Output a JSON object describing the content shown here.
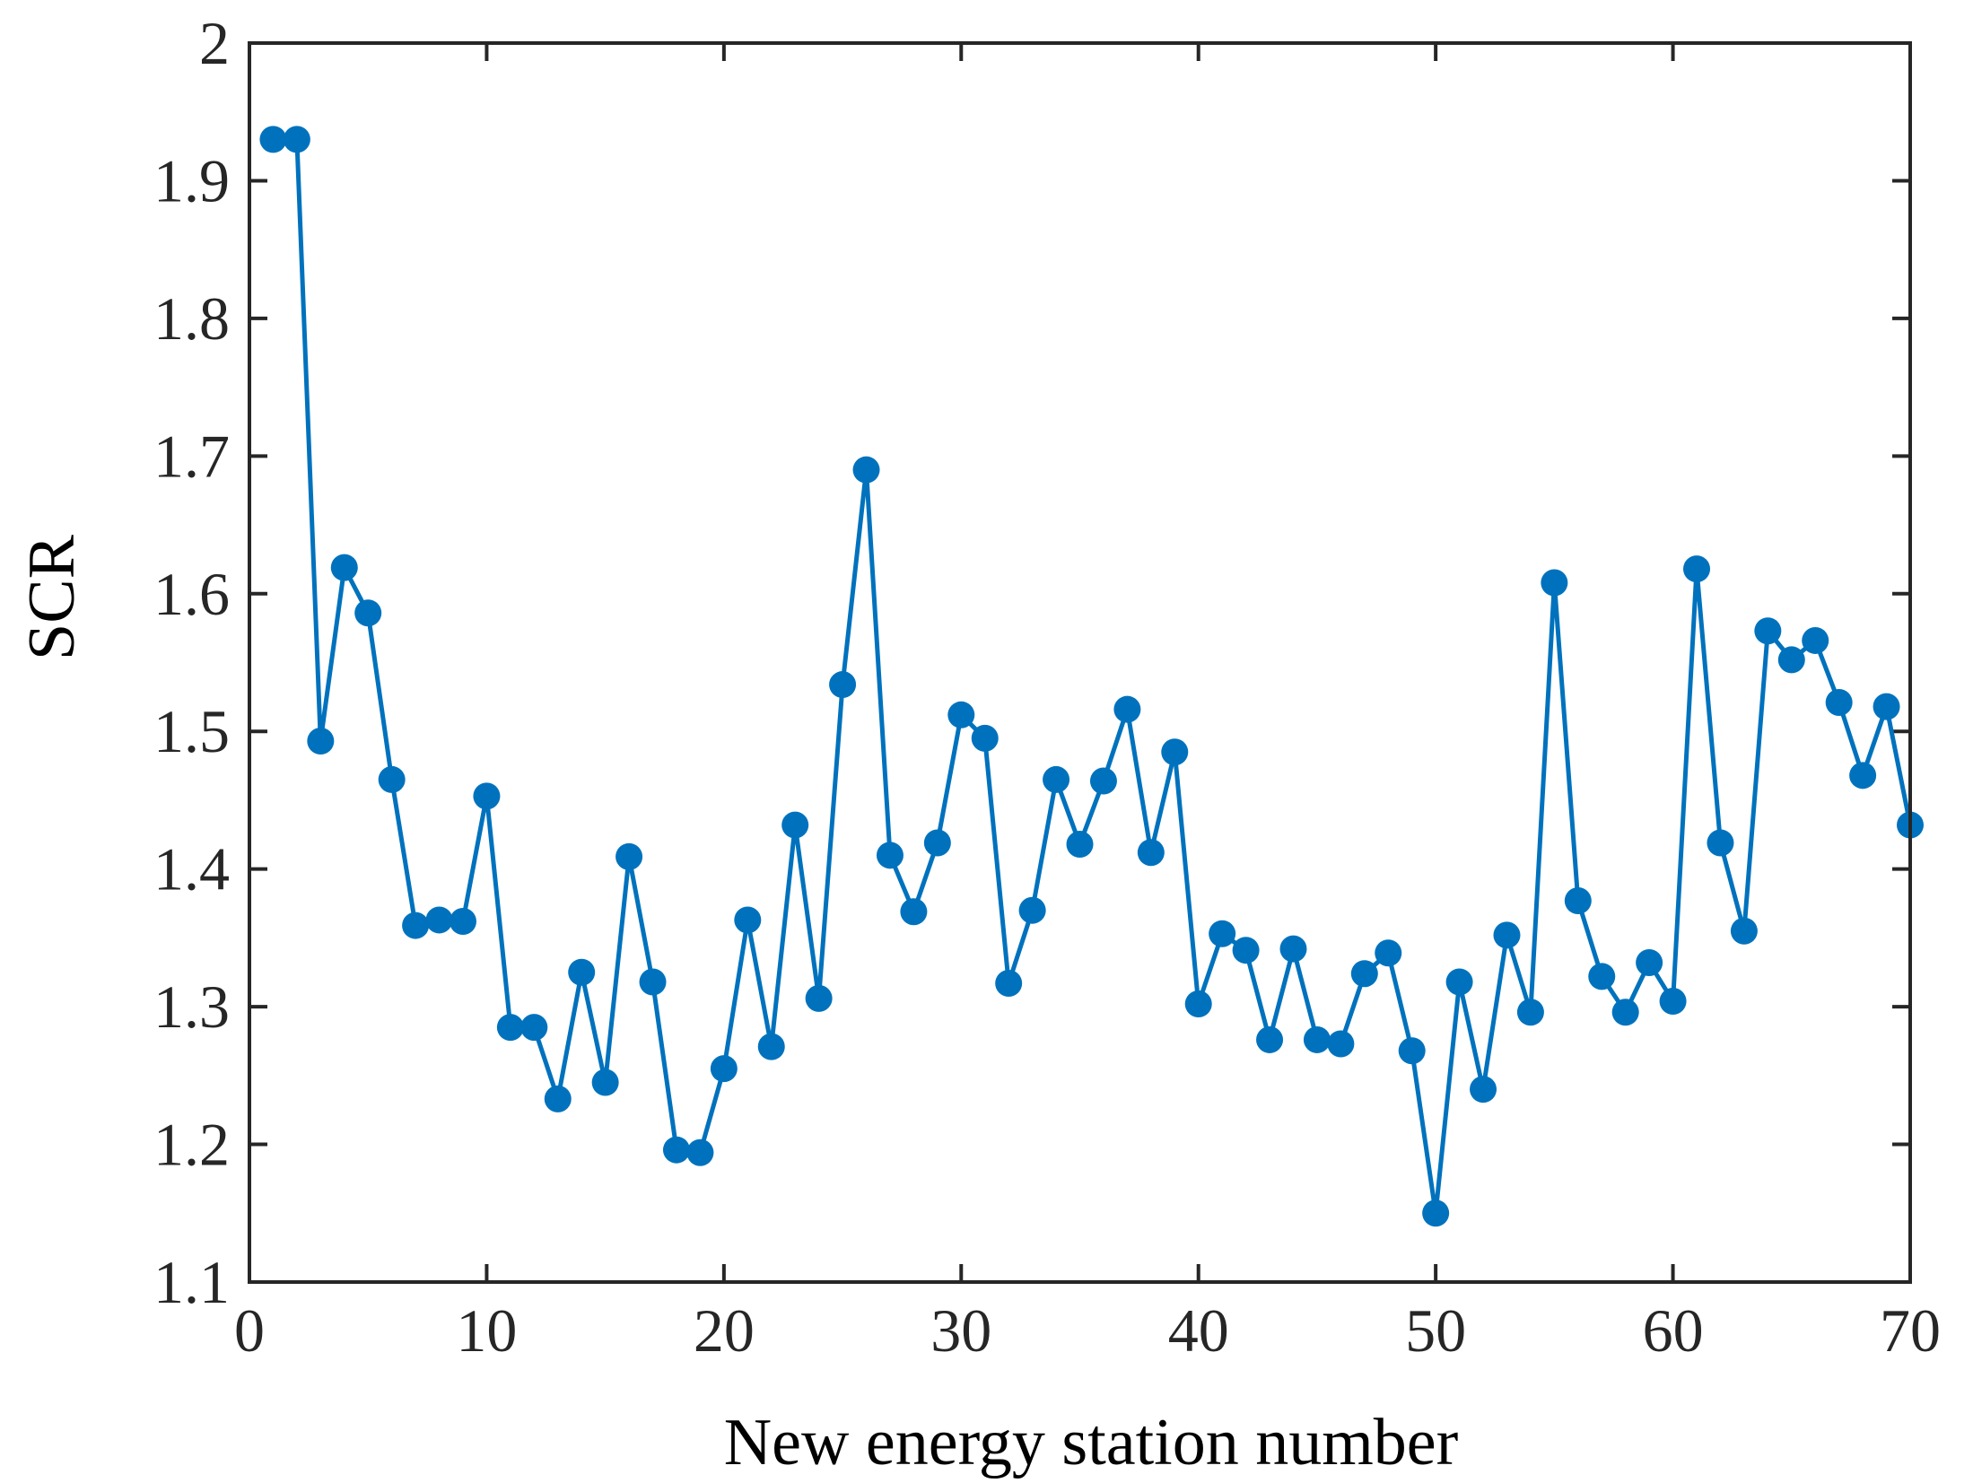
{
  "chart_data": {
    "type": "line",
    "title": "",
    "xlabel": "New energy station number",
    "ylabel": "SCR",
    "xlim": [
      0,
      70
    ],
    "ylim": [
      1.1,
      2.0
    ],
    "xticks": [
      0,
      10,
      20,
      30,
      40,
      50,
      60,
      70
    ],
    "xtick_labels": [
      "0",
      "10",
      "20",
      "30",
      "40",
      "50",
      "60",
      "70"
    ],
    "yticks": [
      1.1,
      1.2,
      1.3,
      1.4,
      1.5,
      1.6,
      1.7,
      1.8,
      1.9,
      2.0
    ],
    "ytick_labels": [
      "1.1",
      "1.2",
      "1.3",
      "1.4",
      "1.5",
      "1.6",
      "1.7",
      "1.8",
      "1.9",
      "2"
    ],
    "grid": false,
    "legend": "none",
    "series": [
      {
        "name": "SCR",
        "color": "#0072BD",
        "marker": "circle",
        "x": [
          1,
          2,
          3,
          4,
          5,
          6,
          7,
          8,
          9,
          10,
          11,
          12,
          13,
          14,
          15,
          16,
          17,
          18,
          19,
          20,
          21,
          22,
          23,
          24,
          25,
          26,
          27,
          28,
          29,
          30,
          31,
          32,
          33,
          34,
          35,
          36,
          37,
          38,
          39,
          40,
          41,
          42,
          43,
          44,
          45,
          46,
          47,
          48,
          49,
          50,
          51,
          52,
          53,
          54,
          55,
          56,
          57,
          58,
          59,
          60,
          61,
          62,
          63,
          64,
          65,
          66,
          67,
          68,
          69,
          70
        ],
        "values": [
          1.93,
          1.93,
          1.493,
          1.619,
          1.586,
          1.465,
          1.359,
          1.363,
          1.362,
          1.453,
          1.285,
          1.285,
          1.233,
          1.325,
          1.245,
          1.409,
          1.318,
          1.196,
          1.194,
          1.255,
          1.363,
          1.271,
          1.432,
          1.306,
          1.534,
          1.69,
          1.41,
          1.369,
          1.419,
          1.512,
          1.495,
          1.317,
          1.37,
          1.465,
          1.418,
          1.464,
          1.516,
          1.412,
          1.485,
          1.302,
          1.353,
          1.341,
          1.276,
          1.342,
          1.276,
          1.273,
          1.324,
          1.339,
          1.268,
          1.15,
          1.318,
          1.24,
          1.352,
          1.296,
          1.608,
          1.377,
          1.322,
          1.296,
          1.332,
          1.304,
          1.618,
          1.419,
          1.355,
          1.573,
          1.552,
          1.566,
          1.521,
          1.468,
          1.518,
          1.432
        ]
      }
    ]
  }
}
